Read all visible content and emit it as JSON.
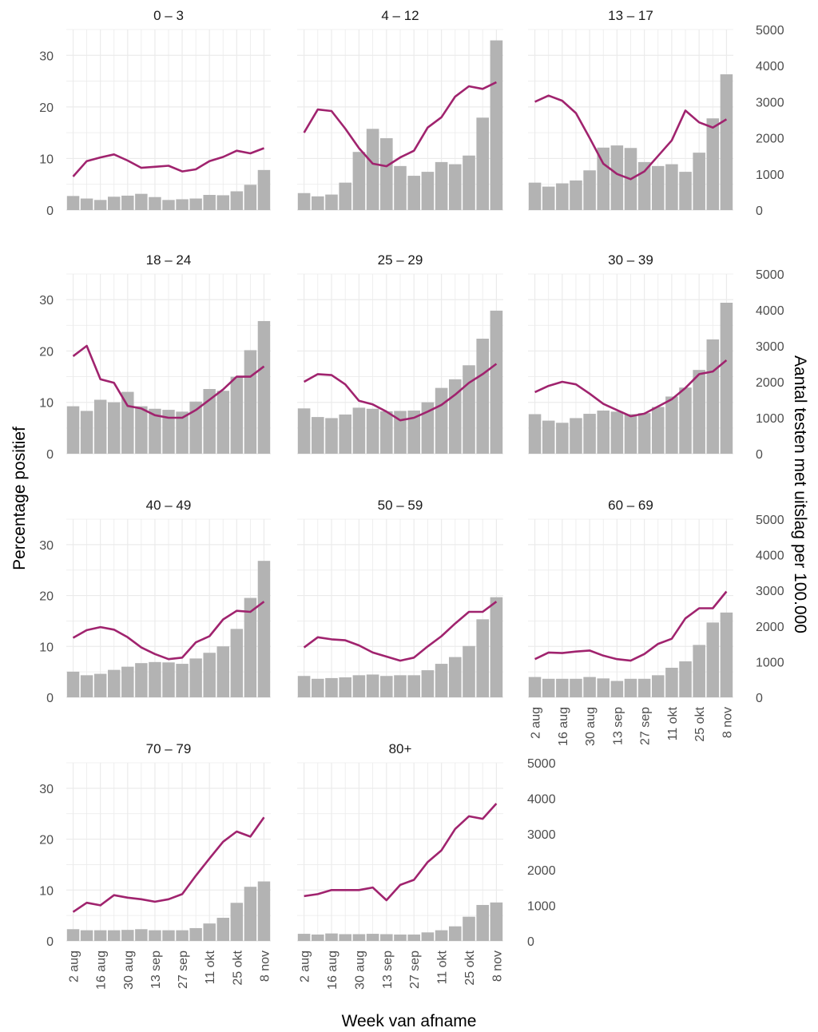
{
  "chart_data": {
    "type": "bar+line",
    "facet_by": "leeftijdsgroep",
    "xlabel": "Week van afname",
    "ylabel_left": "Percentage positief",
    "ylabel_right": "Aantal testen met uitslag per 100.000",
    "y_left_lim": [
      0,
      35
    ],
    "y_left_ticks": [
      0,
      10,
      20,
      30
    ],
    "y_right_lim": [
      0,
      5000
    ],
    "y_right_ticks": [
      0,
      1000,
      2000,
      3000,
      4000,
      5000
    ],
    "x_tick_labels": [
      "2 aug",
      "16 aug",
      "30 aug",
      "13 sep",
      "27 sep",
      "11 okt",
      "25 okt",
      "8 nov"
    ],
    "weeks": [
      "2 aug",
      "9 aug",
      "16 aug",
      "23 aug",
      "30 aug",
      "6 sep",
      "13 sep",
      "20 sep",
      "27 sep",
      "4 okt",
      "11 okt",
      "18 okt",
      "25 okt",
      "1 nov",
      "8 nov"
    ],
    "grid": true,
    "colors": {
      "bars": "#b3b3b3",
      "line": "#a0236e",
      "grid": "#ebebeb"
    },
    "series": [
      {
        "name": "Aantal testen met uitslag per 100.000",
        "geom": "bar",
        "axis": "right"
      },
      {
        "name": "Percentage positief",
        "geom": "line",
        "axis": "left"
      }
    ],
    "facets": [
      {
        "title": "0 – 3",
        "tests": [
          390,
          320,
          280,
          370,
          400,
          450,
          360,
          280,
          300,
          320,
          420,
          410,
          520,
          700,
          1110
        ],
        "pct_positive": [
          6.5,
          9.5,
          10.2,
          10.8,
          9.6,
          8.2,
          8.4,
          8.6,
          7.5,
          7.9,
          9.5,
          10.3,
          11.5,
          11.0,
          12.0
        ]
      },
      {
        "title": "4 – 12",
        "tests": [
          470,
          380,
          430,
          760,
          1610,
          2250,
          1990,
          1220,
          950,
          1060,
          1330,
          1270,
          1510,
          2560,
          4700
        ],
        "pct_positive": [
          15.0,
          19.5,
          19.2,
          15.8,
          12.0,
          9.0,
          8.5,
          10.2,
          11.5,
          16.0,
          18.0,
          22.0,
          24.0,
          23.5,
          24.8
        ]
      },
      {
        "title": "13 – 17",
        "tests": [
          760,
          650,
          740,
          820,
          1100,
          1730,
          1790,
          1720,
          1330,
          1220,
          1270,
          1060,
          1590,
          2540,
          3760
        ],
        "pct_positive": [
          21.0,
          22.2,
          21.2,
          18.8,
          14.0,
          9.0,
          7.0,
          6.0,
          7.5,
          10.5,
          13.5,
          19.3,
          17.0,
          16.0,
          17.6
        ]
      },
      {
        "title": "18 – 24",
        "tests": [
          1320,
          1190,
          1500,
          1430,
          1720,
          1320,
          1250,
          1220,
          1170,
          1450,
          1800,
          1750,
          2140,
          2880,
          3690
        ],
        "pct_positive": [
          19.0,
          21.0,
          14.5,
          13.8,
          9.3,
          8.8,
          7.5,
          7.0,
          7.0,
          8.5,
          10.5,
          12.5,
          15.0,
          15.0,
          17.0
        ]
      },
      {
        "title": "25 – 29",
        "tests": [
          1260,
          1020,
          990,
          1090,
          1280,
          1250,
          1180,
          1190,
          1200,
          1430,
          1830,
          2070,
          2460,
          3200,
          3980
        ],
        "pct_positive": [
          14.0,
          15.5,
          15.3,
          13.5,
          10.3,
          9.6,
          8.2,
          6.5,
          7.0,
          8.2,
          9.5,
          11.5,
          13.8,
          15.5,
          17.5
        ]
      },
      {
        "title": "30 – 39",
        "tests": [
          1100,
          920,
          860,
          990,
          1110,
          1200,
          1170,
          1100,
          1130,
          1300,
          1590,
          1840,
          2330,
          3180,
          4200
        ],
        "pct_positive": [
          12.0,
          13.2,
          14.0,
          13.5,
          11.7,
          9.7,
          8.5,
          7.3,
          7.8,
          9.2,
          10.6,
          12.8,
          15.5,
          16.0,
          18.2
        ]
      },
      {
        "title": "40 – 49",
        "tests": [
          720,
          620,
          660,
          770,
          860,
          960,
          990,
          980,
          940,
          1090,
          1250,
          1430,
          1920,
          2790,
          3830
        ],
        "pct_positive": [
          11.7,
          13.2,
          13.8,
          13.3,
          11.8,
          9.8,
          8.5,
          7.5,
          7.8,
          10.8,
          12.0,
          15.3,
          17.0,
          16.8,
          18.8
        ]
      },
      {
        "title": "50 – 59",
        "tests": [
          600,
          520,
          540,
          560,
          620,
          640,
          600,
          620,
          620,
          760,
          940,
          1130,
          1440,
          2190,
          2810
        ],
        "pct_positive": [
          9.8,
          11.8,
          11.4,
          11.2,
          10.2,
          8.8,
          8.0,
          7.2,
          7.8,
          10.0,
          12.0,
          14.5,
          16.8,
          16.8,
          18.8
        ]
      },
      {
        "title": "60 – 69",
        "tests": [
          570,
          520,
          520,
          520,
          570,
          530,
          460,
          520,
          520,
          620,
          830,
          1010,
          1470,
          2100,
          2380
        ],
        "pct_positive": [
          7.5,
          8.8,
          8.7,
          9.0,
          9.2,
          8.2,
          7.5,
          7.2,
          8.5,
          10.5,
          11.5,
          15.5,
          17.5,
          17.5,
          20.8
        ]
      },
      {
        "title": "70 – 79",
        "tests": [
          330,
          300,
          300,
          300,
          310,
          330,
          300,
          300,
          300,
          360,
          490,
          650,
          1070,
          1520,
          1670
        ],
        "pct_positive": [
          5.7,
          7.5,
          7.0,
          9.0,
          8.5,
          8.2,
          7.7,
          8.2,
          9.2,
          12.8,
          16.2,
          19.5,
          21.5,
          20.5,
          24.3
        ]
      },
      {
        "title": "80+",
        "tests": [
          200,
          180,
          210,
          190,
          190,
          200,
          190,
          180,
          180,
          240,
          300,
          410,
          680,
          1010,
          1080
        ],
        "pct_positive": [
          8.8,
          9.2,
          10.0,
          10.0,
          10.0,
          10.5,
          8.0,
          11.0,
          12.0,
          15.5,
          17.8,
          22.0,
          24.5,
          24.0,
          27.0
        ]
      }
    ]
  }
}
